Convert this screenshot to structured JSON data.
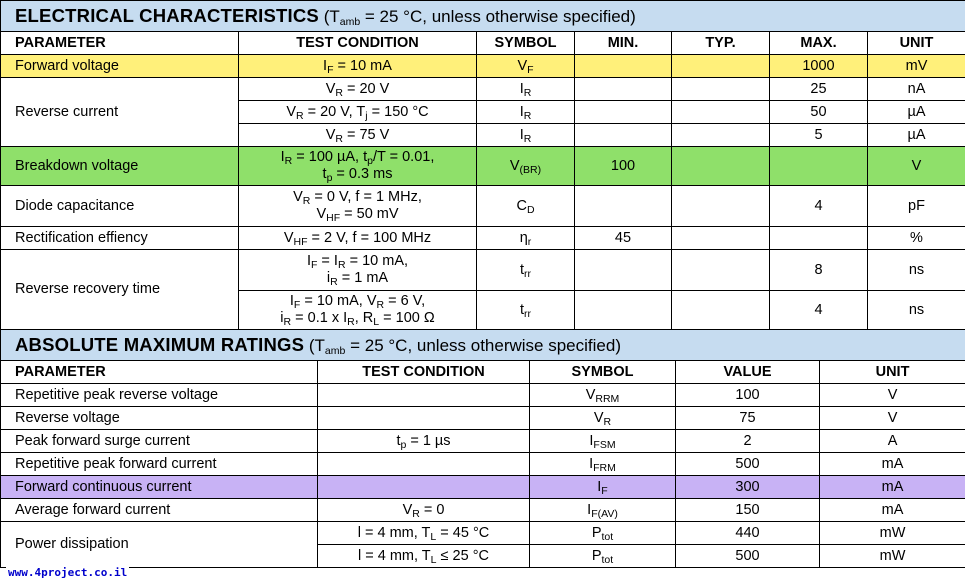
{
  "electrical": {
    "title": "ELECTRICAL CHARACTERISTICS",
    "condition_prefix": "(T",
    "condition_sub": "amb",
    "condition_suffix": " = 25 °C, unless otherwise specified)",
    "headers": [
      "PARAMETER",
      "TEST CONDITION",
      "SYMBOL",
      "MIN.",
      "TYP.",
      "MAX.",
      "UNIT"
    ],
    "rows": {
      "fwd": {
        "param": "Forward voltage",
        "cond": "I<sub>F</sub> = 10 mA",
        "symbol": "V<sub>F</sub>",
        "min": "",
        "typ": "",
        "max": "1000",
        "unit": "mV"
      },
      "rev1": {
        "param": "Reverse current",
        "cond": "V<sub>R</sub> = 20 V",
        "symbol": "I<sub>R</sub>",
        "min": "",
        "typ": "",
        "max": "25",
        "unit": "nA"
      },
      "rev2": {
        "cond": "V<sub>R</sub> = 20 V, T<sub>j</sub> = 150 °C",
        "symbol": "I<sub>R</sub>",
        "min": "",
        "typ": "",
        "max": "50",
        "unit": "µA"
      },
      "rev3": {
        "cond": "V<sub>R</sub> = 75 V",
        "symbol": "I<sub>R</sub>",
        "min": "",
        "typ": "",
        "max": "5",
        "unit": "µA"
      },
      "brk": {
        "param": "Breakdown voltage",
        "cond": "I<sub>R</sub> = 100 µA, t<sub>p</sub>/T = 0.01,<br>t<sub>p</sub> = 0.3 ms",
        "symbol": "V<sub>(BR)</sub>",
        "min": "100",
        "typ": "",
        "max": "",
        "unit": "V"
      },
      "cap": {
        "param": "Diode capacitance",
        "cond": "V<sub>R</sub> = 0 V, f = 1 MHz,<br>V<sub>HF</sub> = 50 mV",
        "symbol": "C<sub>D</sub>",
        "min": "",
        "typ": "",
        "max": "4",
        "unit": "pF"
      },
      "rect": {
        "param": "Rectification effiency",
        "cond": "V<sub>HF</sub> = 2 V, f = 100 MHz",
        "symbol": "η<sub>r</sub>",
        "min": "45",
        "typ": "",
        "max": "",
        "unit": "%"
      },
      "rrt1": {
        "param": "Reverse recovery time",
        "cond": "I<sub>F</sub> = I<sub>R</sub> = 10 mA,<br>i<sub>R</sub> = 1 mA",
        "symbol": "t<sub>rr</sub>",
        "min": "",
        "typ": "",
        "max": "8",
        "unit": "ns"
      },
      "rrt2": {
        "cond": "I<sub>F</sub> = 10 mA, V<sub>R</sub> = 6 V,<br>i<sub>R</sub> = 0.1 x I<sub>R</sub>, R<sub>L</sub> = 100 Ω",
        "symbol": "t<sub>rr</sub>",
        "min": "",
        "typ": "",
        "max": "4",
        "unit": "ns"
      }
    }
  },
  "absolute": {
    "title": "ABSOLUTE MAXIMUM RATINGS",
    "condition_prefix": "(T",
    "condition_sub": "amb",
    "condition_suffix": " = 25 °C, unless otherwise specified)",
    "headers": [
      "PARAMETER",
      "TEST CONDITION",
      "SYMBOL",
      "VALUE",
      "UNIT"
    ],
    "rows": {
      "vrrm": {
        "param": "Repetitive peak reverse voltage",
        "cond": "",
        "symbol": "V<sub>RRM</sub>",
        "value": "100",
        "unit": "V"
      },
      "vr": {
        "param": "Reverse voltage",
        "cond": "",
        "symbol": "V<sub>R</sub>",
        "value": "75",
        "unit": "V"
      },
      "ifsm": {
        "param": "Peak forward surge current",
        "cond": "t<sub>p</sub> = 1 µs",
        "symbol": "I<sub>FSM</sub>",
        "value": "2",
        "unit": "A"
      },
      "ifrm": {
        "param": "Repetitive peak forward current",
        "cond": "",
        "symbol": "I<sub>FRM</sub>",
        "value": "500",
        "unit": "mA"
      },
      "if": {
        "param": "Forward continuous current",
        "cond": "",
        "symbol": "I<sub>F</sub>",
        "value": "300",
        "unit": "mA"
      },
      "ifav": {
        "param": "Average forward current",
        "cond": "V<sub>R</sub> = 0",
        "symbol": "I<sub>F(AV)</sub>",
        "value": "150",
        "unit": "mA"
      },
      "ptot1": {
        "param": "Power dissipation",
        "cond": "l = 4 mm, T<sub>L</sub> = 45 °C",
        "symbol": "P<sub>tot</sub>",
        "value": "440",
        "unit": "mW"
      },
      "ptot2": {
        "cond": "l = 4 mm, T<sub>L</sub> ≤ 25 °C",
        "symbol": "P<sub>tot</sub>",
        "value": "500",
        "unit": "mW"
      }
    }
  },
  "highlight_colors": {
    "title_bg": "#c6dcf0",
    "yellow": "#fff07a",
    "green": "#8fe06a",
    "purple": "#c8b2f5"
  },
  "watermark": "www.4project.co.il"
}
